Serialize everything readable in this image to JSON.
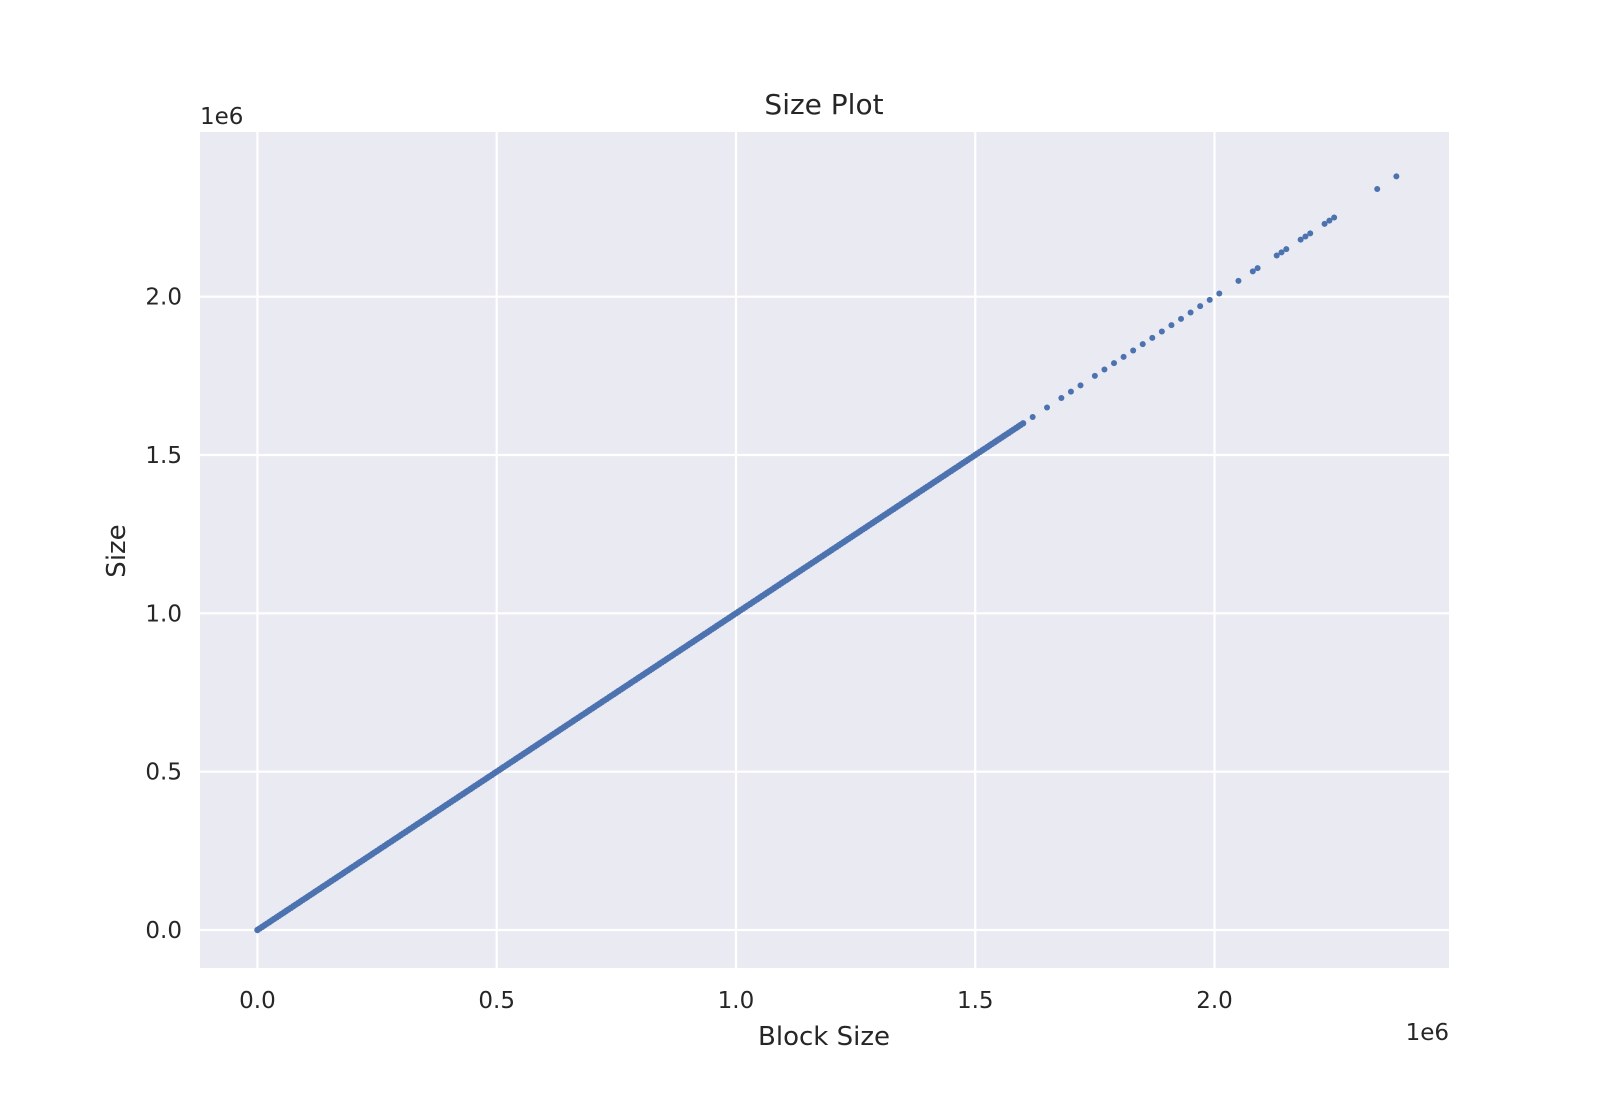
{
  "chart_data": {
    "type": "scatter",
    "title": "Size Plot",
    "xlabel": "Block Size",
    "ylabel": "Size",
    "x_offset_label": "1e6",
    "y_offset_label": "1e6",
    "xlim": [
      -120000,
      2490000
    ],
    "ylim": [
      -120000,
      2520000
    ],
    "xticks": [
      0,
      500000,
      1000000,
      1500000,
      2000000
    ],
    "xtick_labels": [
      "0.0",
      "0.5",
      "1.0",
      "1.5",
      "2.0"
    ],
    "yticks": [
      0,
      500000,
      1000000,
      1500000,
      2000000
    ],
    "ytick_labels": [
      "0.0",
      "0.5",
      "1.0",
      "1.5",
      "2.0"
    ],
    "grid": true,
    "colors": {
      "background": "#eaeaf2",
      "grid": "#ffffff",
      "marker": "#4c72b0"
    },
    "series": [
      {
        "dense_range": [
          0,
          1600000
        ],
        "points": [
          [
            1620000,
            1620000
          ],
          [
            1650000,
            1650000
          ],
          [
            1680000,
            1680000
          ],
          [
            1700000,
            1700000
          ],
          [
            1720000,
            1720000
          ],
          [
            1750000,
            1750000
          ],
          [
            1770000,
            1770000
          ],
          [
            1790000,
            1790000
          ],
          [
            1810000,
            1810000
          ],
          [
            1830000,
            1830000
          ],
          [
            1850000,
            1850000
          ],
          [
            1870000,
            1870000
          ],
          [
            1890000,
            1890000
          ],
          [
            1910000,
            1910000
          ],
          [
            1930000,
            1930000
          ],
          [
            1950000,
            1950000
          ],
          [
            1970000,
            1970000
          ],
          [
            1990000,
            1990000
          ],
          [
            2010000,
            2010000
          ],
          [
            2050000,
            2050000
          ],
          [
            2080000,
            2080000
          ],
          [
            2090000,
            2090000
          ],
          [
            2130000,
            2130000
          ],
          [
            2140000,
            2140000
          ],
          [
            2150000,
            2150000
          ],
          [
            2180000,
            2180000
          ],
          [
            2190000,
            2190000
          ],
          [
            2200000,
            2200000
          ],
          [
            2230000,
            2230000
          ],
          [
            2240000,
            2240000
          ],
          [
            2250000,
            2250000
          ],
          [
            2340000,
            2340000
          ],
          [
            2380000,
            2380000
          ]
        ]
      }
    ]
  }
}
